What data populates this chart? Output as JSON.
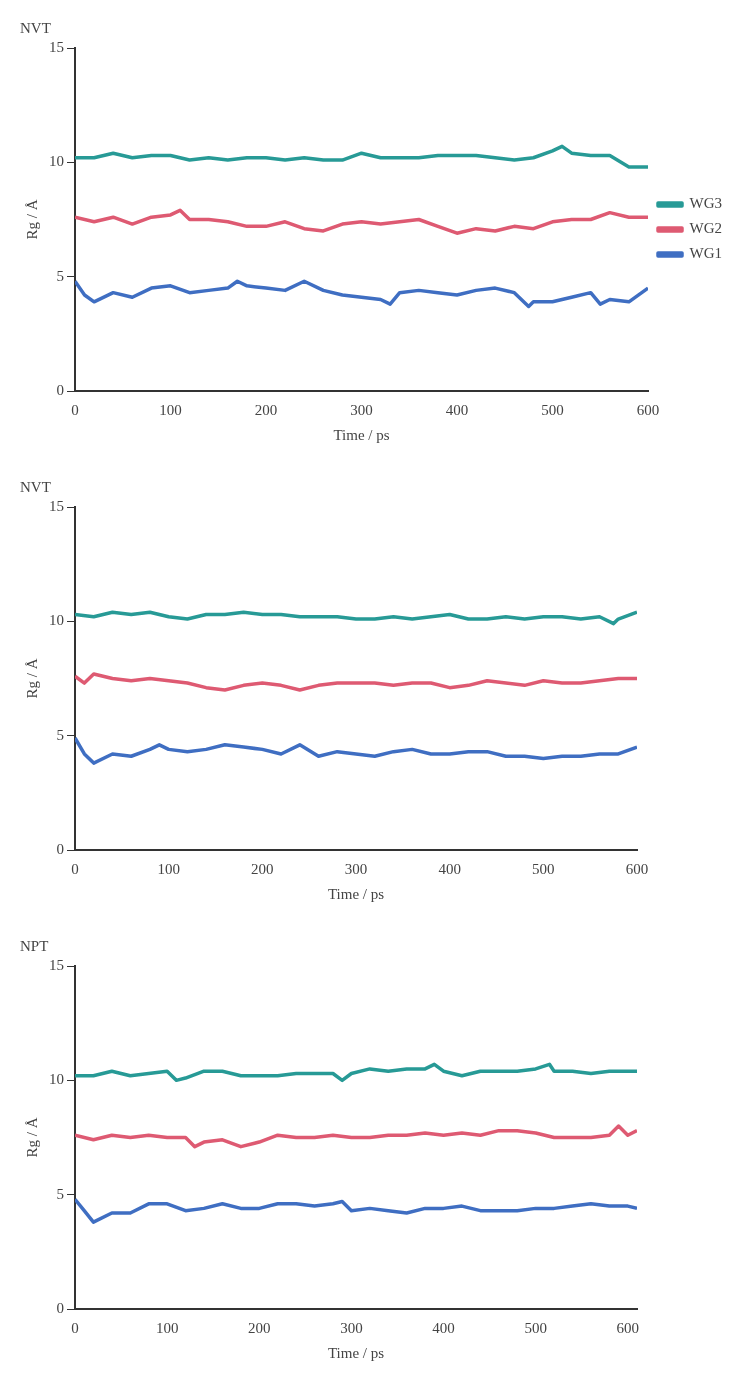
{
  "chart_data": [
    {
      "type": "line",
      "title": "NVT",
      "xlabel": "Time / ps",
      "ylabel": "Rg / Å",
      "xlim": [
        0,
        600
      ],
      "xticks": [
        0,
        100,
        200,
        300,
        400,
        500,
        600
      ],
      "ylim": [
        0,
        15
      ],
      "yticks": [
        0,
        5,
        10,
        15
      ],
      "grid": false,
      "legend": "right",
      "marker": "none",
      "series": [
        {
          "name": "WG3",
          "color": "#279a96",
          "x": [
            0,
            20,
            40,
            60,
            80,
            100,
            120,
            140,
            160,
            180,
            200,
            220,
            240,
            260,
            280,
            300,
            320,
            340,
            360,
            380,
            400,
            420,
            440,
            460,
            480,
            500,
            510,
            520,
            540,
            560,
            580,
            600
          ],
          "values": [
            10.2,
            10.2,
            10.4,
            10.2,
            10.3,
            10.3,
            10.1,
            10.2,
            10.1,
            10.2,
            10.2,
            10.1,
            10.2,
            10.1,
            10.1,
            10.4,
            10.2,
            10.2,
            10.2,
            10.3,
            10.3,
            10.3,
            10.2,
            10.1,
            10.2,
            10.5,
            10.7,
            10.4,
            10.3,
            10.3,
            9.8,
            9.8
          ]
        },
        {
          "name": "WG2",
          "color": "#de5a72",
          "x": [
            0,
            20,
            40,
            60,
            80,
            100,
            110,
            120,
            140,
            160,
            180,
            200,
            220,
            240,
            260,
            280,
            300,
            320,
            340,
            360,
            380,
            400,
            420,
            440,
            460,
            480,
            500,
            520,
            540,
            560,
            580,
            600
          ],
          "values": [
            7.6,
            7.4,
            7.6,
            7.3,
            7.6,
            7.7,
            7.9,
            7.5,
            7.5,
            7.4,
            7.2,
            7.2,
            7.4,
            7.1,
            7.0,
            7.3,
            7.4,
            7.3,
            7.4,
            7.5,
            7.2,
            6.9,
            7.1,
            7.0,
            7.2,
            7.1,
            7.4,
            7.5,
            7.5,
            7.8,
            7.6,
            7.6
          ]
        },
        {
          "name": "WG1",
          "color": "#3f6ec2",
          "x": [
            0,
            10,
            20,
            40,
            60,
            80,
            100,
            120,
            140,
            160,
            170,
            180,
            200,
            220,
            240,
            260,
            280,
            300,
            320,
            330,
            340,
            360,
            380,
            400,
            420,
            440,
            460,
            475,
            480,
            500,
            520,
            540,
            550,
            560,
            580,
            600
          ],
          "values": [
            4.8,
            4.2,
            3.9,
            4.3,
            4.1,
            4.5,
            4.6,
            4.3,
            4.4,
            4.5,
            4.8,
            4.6,
            4.5,
            4.4,
            4.8,
            4.4,
            4.2,
            4.1,
            4.0,
            3.8,
            4.3,
            4.4,
            4.3,
            4.2,
            4.4,
            4.5,
            4.3,
            3.7,
            3.9,
            3.9,
            4.1,
            4.3,
            3.8,
            4.0,
            3.9,
            4.5
          ]
        }
      ]
    },
    {
      "type": "line",
      "title": "NVT",
      "xlabel": "Time / ps",
      "ylabel": "Rg / Å",
      "xlim": [
        0,
        600
      ],
      "xticks": [
        0,
        100,
        200,
        300,
        400,
        500,
        600
      ],
      "ylim": [
        0,
        15
      ],
      "yticks": [
        0,
        5,
        10,
        15
      ],
      "grid": false,
      "marker": "none",
      "series": [
        {
          "color": "#279a96",
          "x": [
            0,
            20,
            40,
            60,
            80,
            100,
            120,
            140,
            160,
            180,
            200,
            220,
            240,
            260,
            280,
            300,
            320,
            340,
            360,
            380,
            400,
            420,
            440,
            460,
            480,
            500,
            520,
            540,
            560,
            575,
            580,
            600
          ],
          "values": [
            10.3,
            10.2,
            10.4,
            10.3,
            10.4,
            10.2,
            10.1,
            10.3,
            10.3,
            10.4,
            10.3,
            10.3,
            10.2,
            10.2,
            10.2,
            10.1,
            10.1,
            10.2,
            10.1,
            10.2,
            10.3,
            10.1,
            10.1,
            10.2,
            10.1,
            10.2,
            10.2,
            10.1,
            10.2,
            9.9,
            10.1,
            10.4
          ]
        },
        {
          "color": "#de5a72",
          "x": [
            0,
            10,
            20,
            40,
            60,
            80,
            100,
            120,
            140,
            160,
            180,
            200,
            220,
            240,
            260,
            280,
            300,
            320,
            340,
            360,
            380,
            400,
            420,
            440,
            460,
            480,
            500,
            520,
            540,
            560,
            580,
            600
          ],
          "values": [
            7.6,
            7.3,
            7.7,
            7.5,
            7.4,
            7.5,
            7.4,
            7.3,
            7.1,
            7.0,
            7.2,
            7.3,
            7.2,
            7.0,
            7.2,
            7.3,
            7.3,
            7.3,
            7.2,
            7.3,
            7.3,
            7.1,
            7.2,
            7.4,
            7.3,
            7.2,
            7.4,
            7.3,
            7.3,
            7.4,
            7.5,
            7.5
          ]
        },
        {
          "color": "#3f6ec2",
          "x": [
            0,
            10,
            20,
            40,
            60,
            80,
            90,
            100,
            120,
            140,
            160,
            180,
            200,
            220,
            240,
            260,
            280,
            300,
            320,
            340,
            360,
            380,
            400,
            420,
            440,
            460,
            480,
            500,
            520,
            540,
            560,
            580,
            600
          ],
          "values": [
            4.9,
            4.2,
            3.8,
            4.2,
            4.1,
            4.4,
            4.6,
            4.4,
            4.3,
            4.4,
            4.6,
            4.5,
            4.4,
            4.2,
            4.6,
            4.1,
            4.3,
            4.2,
            4.1,
            4.3,
            4.4,
            4.2,
            4.2,
            4.3,
            4.3,
            4.1,
            4.1,
            4.0,
            4.1,
            4.1,
            4.2,
            4.2,
            4.5
          ]
        }
      ]
    },
    {
      "type": "line",
      "title": "NPT",
      "xlabel": "Time / ps",
      "ylabel": "Rg / Å",
      "xlim": [
        0,
        610
      ],
      "xticks": [
        0,
        100,
        200,
        300,
        400,
        500,
        600
      ],
      "ylim": [
        0,
        15
      ],
      "yticks": [
        0,
        5,
        10,
        15
      ],
      "grid": false,
      "marker": "none",
      "series": [
        {
          "color": "#279a96",
          "x": [
            0,
            20,
            40,
            60,
            80,
            100,
            110,
            120,
            140,
            160,
            180,
            200,
            220,
            240,
            260,
            280,
            290,
            300,
            320,
            340,
            360,
            380,
            390,
            400,
            420,
            440,
            460,
            480,
            500,
            515,
            520,
            540,
            560,
            580,
            600,
            610
          ],
          "values": [
            10.2,
            10.2,
            10.4,
            10.2,
            10.3,
            10.4,
            10.0,
            10.1,
            10.4,
            10.4,
            10.2,
            10.2,
            10.2,
            10.3,
            10.3,
            10.3,
            10.0,
            10.3,
            10.5,
            10.4,
            10.5,
            10.5,
            10.7,
            10.4,
            10.2,
            10.4,
            10.4,
            10.4,
            10.5,
            10.7,
            10.4,
            10.4,
            10.3,
            10.4,
            10.4,
            10.4
          ]
        },
        {
          "color": "#de5a72",
          "x": [
            0,
            20,
            40,
            60,
            80,
            100,
            120,
            130,
            140,
            160,
            180,
            200,
            220,
            240,
            260,
            280,
            300,
            320,
            340,
            360,
            380,
            400,
            420,
            440,
            460,
            480,
            500,
            520,
            540,
            560,
            580,
            590,
            600,
            610
          ],
          "values": [
            7.6,
            7.4,
            7.6,
            7.5,
            7.6,
            7.5,
            7.5,
            7.1,
            7.3,
            7.4,
            7.1,
            7.3,
            7.6,
            7.5,
            7.5,
            7.6,
            7.5,
            7.5,
            7.6,
            7.6,
            7.7,
            7.6,
            7.7,
            7.6,
            7.8,
            7.8,
            7.7,
            7.5,
            7.5,
            7.5,
            7.6,
            8.0,
            7.6,
            7.8
          ]
        },
        {
          "color": "#3f6ec2",
          "x": [
            0,
            10,
            20,
            40,
            60,
            80,
            100,
            120,
            140,
            160,
            180,
            200,
            220,
            240,
            260,
            280,
            290,
            300,
            320,
            340,
            360,
            380,
            400,
            420,
            440,
            460,
            480,
            500,
            520,
            540,
            560,
            580,
            600,
            610
          ],
          "values": [
            4.8,
            4.3,
            3.8,
            4.2,
            4.2,
            4.6,
            4.6,
            4.3,
            4.4,
            4.6,
            4.4,
            4.4,
            4.6,
            4.6,
            4.5,
            4.6,
            4.7,
            4.3,
            4.4,
            4.3,
            4.2,
            4.4,
            4.4,
            4.5,
            4.3,
            4.3,
            4.3,
            4.4,
            4.4,
            4.5,
            4.6,
            4.5,
            4.5,
            4.4
          ]
        }
      ]
    }
  ]
}
